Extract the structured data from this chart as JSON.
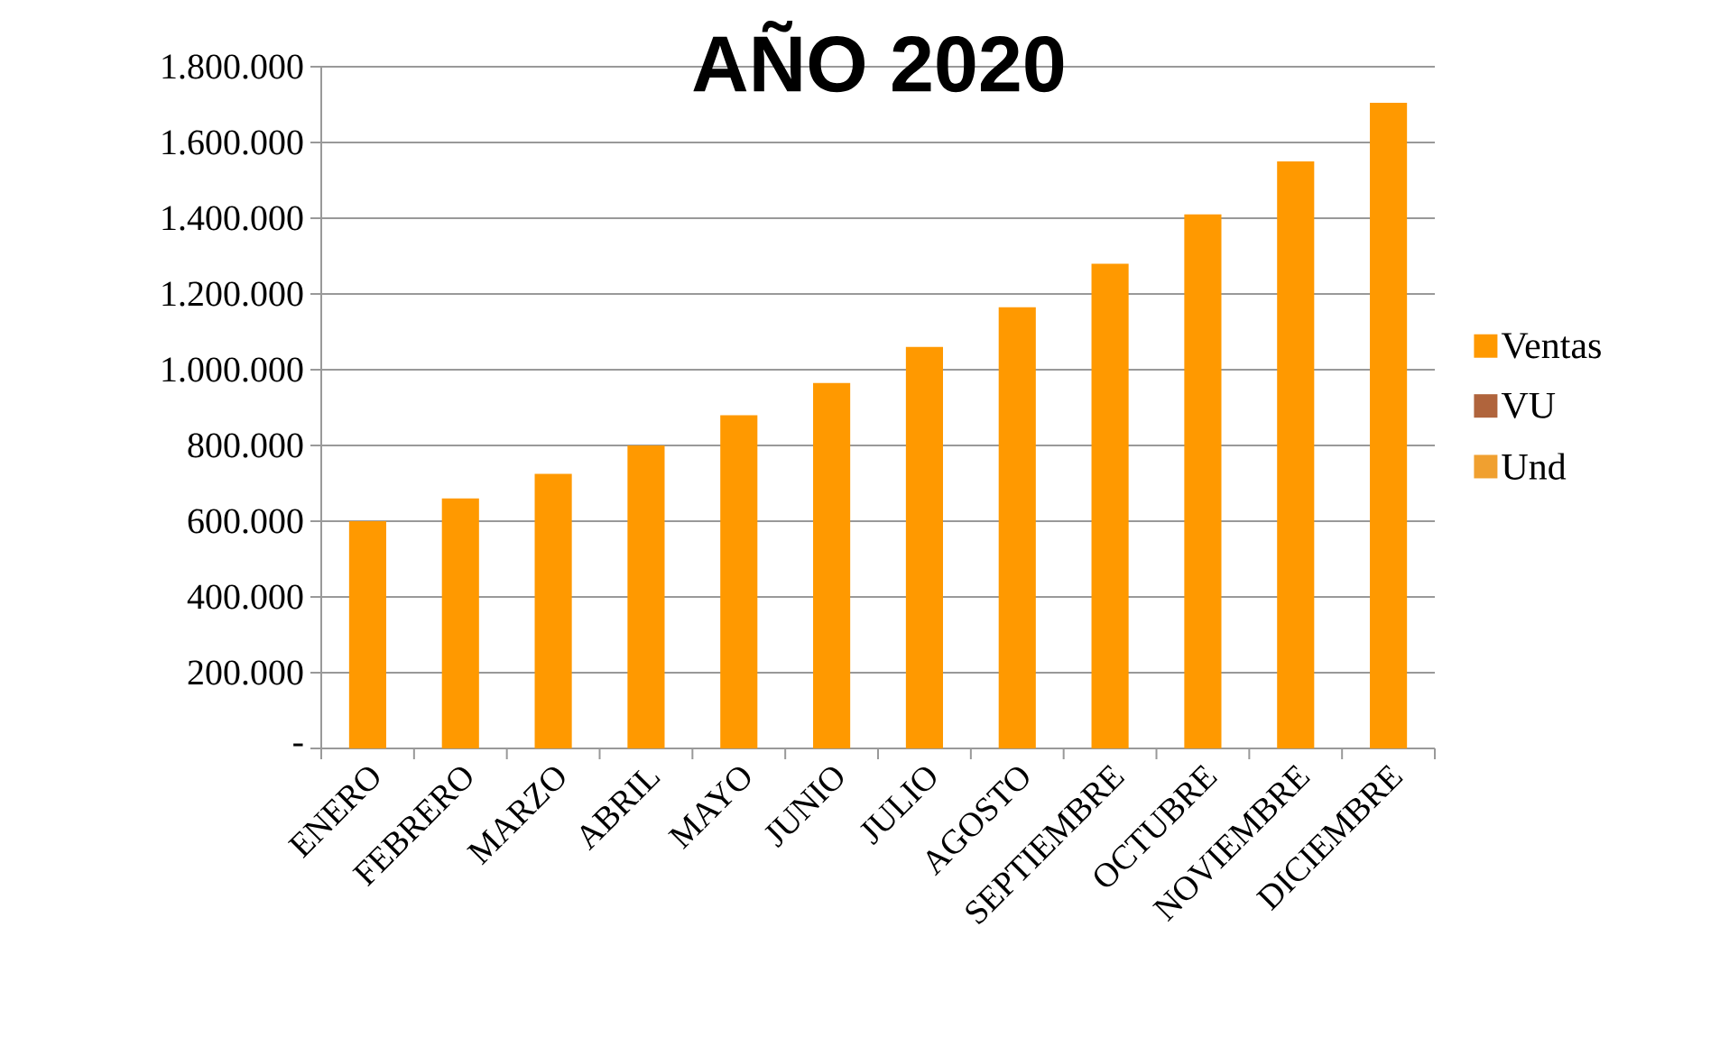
{
  "chart_data": {
    "type": "bar",
    "title": "AÑO 2020",
    "categories": [
      "ENERO",
      "FEBRERO",
      "MARZO",
      "ABRIL",
      "MAYO",
      "JUNIO",
      "JULIO",
      "AGOSTO",
      "SEPTIEMBRE",
      "OCTUBRE",
      "NOVIEMBRE",
      "DICIEMBRE"
    ],
    "series": [
      {
        "name": "Ventas",
        "color": "#ff9900",
        "values": [
          600000,
          660000,
          725000,
          800000,
          880000,
          965000,
          1060000,
          1165000,
          1280000,
          1410000,
          1550000,
          1705000
        ]
      },
      {
        "name": "VU",
        "color": "#b0643c",
        "values": [
          null,
          null,
          null,
          null,
          null,
          null,
          null,
          null,
          null,
          null,
          null,
          null
        ]
      },
      {
        "name": "Und",
        "color": "#f0a030",
        "values": [
          null,
          null,
          null,
          null,
          null,
          null,
          null,
          null,
          null,
          null,
          null,
          null
        ]
      }
    ],
    "ylim": [
      0,
      1800000
    ],
    "yticks": [
      {
        "value": 0,
        "label": "-"
      },
      {
        "value": 200000,
        "label": "200.000"
      },
      {
        "value": 400000,
        "label": "400.000"
      },
      {
        "value": 600000,
        "label": "600.000"
      },
      {
        "value": 800000,
        "label": "800.000"
      },
      {
        "value": 1000000,
        "label": "1.000.000"
      },
      {
        "value": 1200000,
        "label": "1.200.000"
      },
      {
        "value": 1400000,
        "label": "1.400.000"
      },
      {
        "value": 1600000,
        "label": "1.600.000"
      },
      {
        "value": 1800000,
        "label": "1.800.000"
      }
    ],
    "grid": "y",
    "legend": "right"
  }
}
